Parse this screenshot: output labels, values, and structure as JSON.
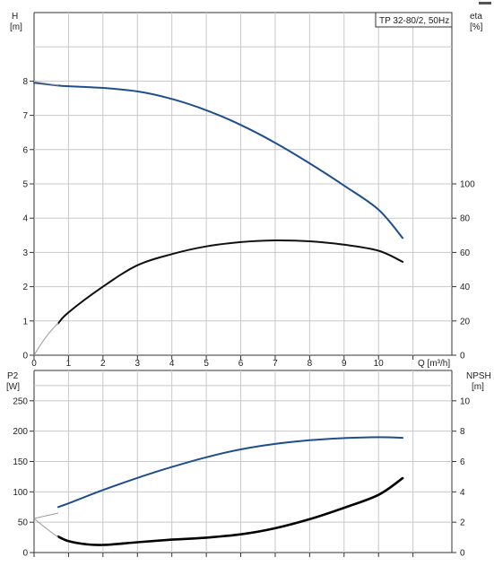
{
  "chart_data": [
    {
      "type": "line",
      "title": "TP 32-80/2, 50Hz",
      "x_label": "Q [m³/h]",
      "y_left": {
        "name": "H",
        "unit": "[m]",
        "ticks": [
          0,
          1,
          2,
          3,
          4,
          5,
          6,
          7,
          8
        ]
      },
      "y_right": {
        "name": "eta",
        "unit": "[%]",
        "ticks": [
          0,
          20,
          40,
          60,
          80,
          100
        ]
      },
      "x_ticks": [
        0,
        1,
        2,
        3,
        4,
        5,
        6,
        7,
        8,
        9,
        10
      ],
      "xlim": [
        0,
        12
      ],
      "ylim_left": [
        0,
        10
      ],
      "ylim_right": [
        0,
        200
      ],
      "grid": true,
      "series": [
        {
          "axis": "left",
          "color": "#1f4e8c",
          "points": [
            [
              0,
              7.95
            ],
            [
              0.7,
              7.87
            ],
            [
              1,
              7.85
            ],
            [
              2,
              7.8
            ],
            [
              3,
              7.7
            ],
            [
              4,
              7.48
            ],
            [
              5,
              7.15
            ],
            [
              6,
              6.72
            ],
            [
              7,
              6.2
            ],
            [
              8,
              5.6
            ],
            [
              9,
              4.95
            ],
            [
              10,
              4.25
            ],
            [
              10.7,
              3.42
            ]
          ]
        },
        {
          "axis": "right",
          "color": "#111111",
          "points": [
            [
              0.7,
              18.6
            ],
            [
              1,
              25
            ],
            [
              2,
              40
            ],
            [
              3,
              52.5
            ],
            [
              4,
              59
            ],
            [
              5,
              63.5
            ],
            [
              6,
              66
            ],
            [
              7,
              67
            ],
            [
              8,
              66.5
            ],
            [
              9,
              64.5
            ],
            [
              10,
              61
            ],
            [
              10.7,
              54.5
            ]
          ]
        }
      ]
    },
    {
      "type": "line",
      "x_label": "",
      "y_left": {
        "name": "P2",
        "unit": "[W]",
        "ticks": [
          0,
          50,
          100,
          150,
          200,
          250
        ]
      },
      "y_right": {
        "name": "NPSH",
        "unit": "[m]",
        "ticks": [
          0,
          2,
          4,
          6,
          8,
          10
        ]
      },
      "xlim": [
        0,
        12
      ],
      "ylim_left": [
        0,
        300
      ],
      "ylim_right": [
        0,
        12
      ],
      "grid": true,
      "series": [
        {
          "axis": "left",
          "color": "#1f4e8c",
          "points": [
            [
              0.7,
              75
            ],
            [
              1,
              81
            ],
            [
              2,
              103
            ],
            [
              3,
              123
            ],
            [
              4,
              141
            ],
            [
              5,
              157
            ],
            [
              6,
              170
            ],
            [
              7,
              179
            ],
            [
              8,
              185
            ],
            [
              9,
              188.5
            ],
            [
              10,
              190
            ],
            [
              10.7,
              189
            ]
          ]
        },
        {
          "axis": "right",
          "color": "#000000",
          "points": [
            [
              0.7,
              1.05
            ],
            [
              1,
              0.75
            ],
            [
              1.5,
              0.55
            ],
            [
              2,
              0.5
            ],
            [
              3,
              0.68
            ],
            [
              4,
              0.85
            ],
            [
              5,
              0.98
            ],
            [
              6,
              1.2
            ],
            [
              7,
              1.6
            ],
            [
              8,
              2.2
            ],
            [
              9,
              2.95
            ],
            [
              10,
              3.8
            ],
            [
              10.7,
              4.9
            ]
          ]
        }
      ]
    }
  ]
}
